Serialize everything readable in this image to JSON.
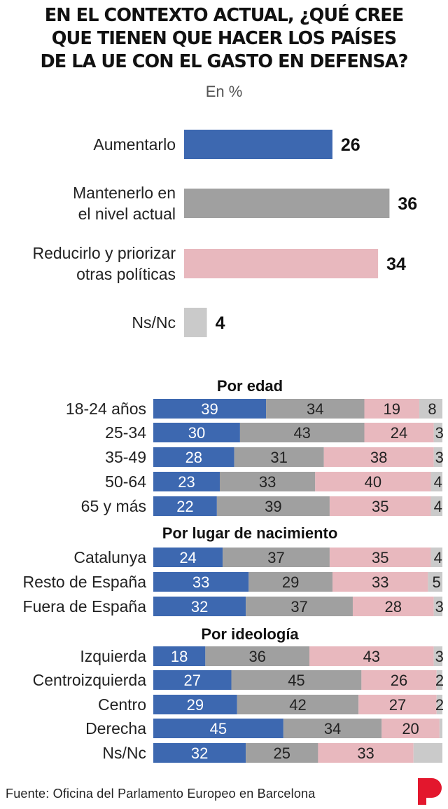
{
  "title_lines": [
    "EN EL CONTEXTO ACTUAL, ¿QUÉ CREE",
    "QUE TIENEN QUE HACER LOS PAÍSES",
    "DE LA UE CON EL GASTO EN DEFENSA?"
  ],
  "subtitle": "En %",
  "source": "Fuente: Oficina del Parlamento Europeo en Barcelona",
  "colors": {
    "aumentarlo": "#3d68b0",
    "mantenerlo": "#a0a0a0",
    "reducirlo": "#e8b8be",
    "nsnc": "#cacaca",
    "logo": "#e3172d"
  },
  "chart_data": [
    {
      "type": "bar",
      "orientation": "horizontal",
      "categories": [
        [
          "Aumentarlo"
        ],
        [
          "Mantenerlo en",
          "el nivel actual"
        ],
        [
          "Reducirlo y priorizar",
          "otras políticas"
        ],
        [
          "Ns/Nc"
        ]
      ],
      "values": [
        26,
        36,
        34,
        4
      ],
      "unit": "%"
    },
    {
      "type": "bar",
      "stacked": true,
      "orientation": "horizontal",
      "series_order": [
        "Aumentarlo",
        "Mantenerlo en el nivel actual",
        "Reducirlo y priorizar otras políticas",
        "Ns/Nc"
      ],
      "groups": [
        {
          "title": "Por edad",
          "rows": [
            {
              "label": "18-24 años",
              "values": [
                39,
                34,
                19,
                8
              ]
            },
            {
              "label": "25-34",
              "values": [
                30,
                43,
                24,
                3
              ]
            },
            {
              "label": "35-49",
              "values": [
                28,
                31,
                38,
                3
              ]
            },
            {
              "label": "50-64",
              "values": [
                23,
                33,
                40,
                4
              ]
            },
            {
              "label": "65 y más",
              "values": [
                22,
                39,
                35,
                4
              ]
            }
          ]
        },
        {
          "title": "Por lugar de nacimiento",
          "rows": [
            {
              "label": "Catalunya",
              "values": [
                24,
                37,
                35,
                4
              ]
            },
            {
              "label": "Resto de España",
              "values": [
                33,
                29,
                33,
                5
              ]
            },
            {
              "label": "Fuera de España",
              "values": [
                32,
                37,
                28,
                3
              ]
            }
          ]
        },
        {
          "title": "Por ideología",
          "rows": [
            {
              "label": "Izquierda",
              "values": [
                18,
                36,
                43,
                3
              ]
            },
            {
              "label": "Centroizquierda",
              "values": [
                27,
                45,
                26,
                2
              ]
            },
            {
              "label": "Centro",
              "values": [
                29,
                42,
                27,
                2
              ]
            },
            {
              "label": "Derecha",
              "values": [
                45,
                34,
                20,
                1
              ]
            },
            {
              "label": "Ns/Nc",
              "values": [
                32,
                25,
                33,
                10
              ]
            }
          ]
        }
      ]
    }
  ]
}
